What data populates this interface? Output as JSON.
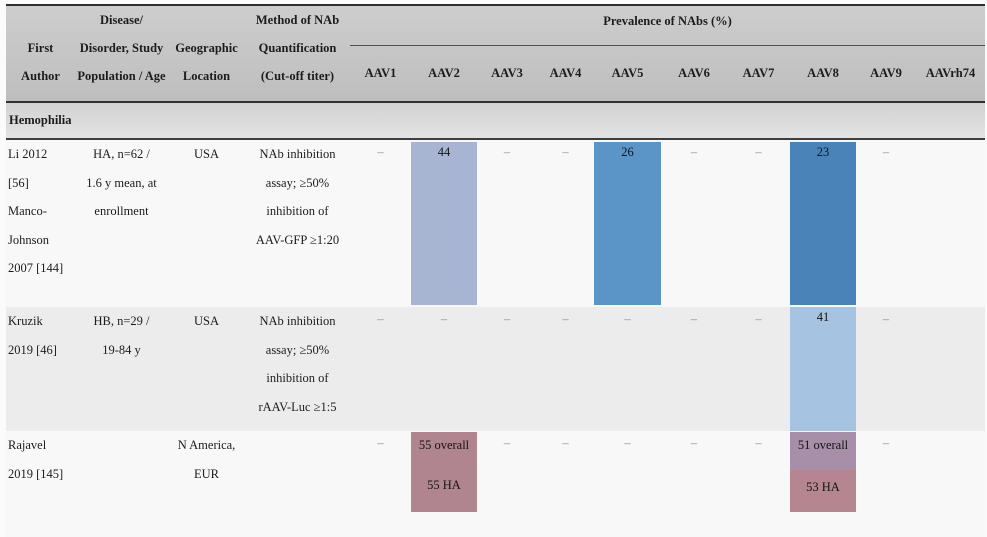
{
  "table": {
    "header": {
      "first_author": [
        "First",
        "Author"
      ],
      "disease": [
        "Disease/",
        "Disorder, Study",
        "Population / Age"
      ],
      "geographic": [
        "Geographic",
        "Location"
      ],
      "method": [
        "Method of NAb",
        "Quantification",
        "(Cut-off titer)"
      ],
      "prevalence_title": "Prevalence of NAbs (%)",
      "aav_columns": [
        "AAV1",
        "AAV2",
        "AAV3",
        "AAV4",
        "AAV5",
        "AAV6",
        "AAV7",
        "AAV8",
        "AAV9",
        "AAVrh74"
      ]
    },
    "section_label": "Hemophilia",
    "rows": [
      {
        "author": [
          "Li 2012",
          "[56]",
          "Manco-",
          "Johnson",
          "2007 [144]"
        ],
        "disease": [
          "HA, n=62 /",
          "1.6 y mean, at",
          "enrollment"
        ],
        "geographic": [
          "USA"
        ],
        "method": [
          "NAb inhibition",
          "assay; ≥50%",
          "inhibition of",
          "AAV-GFP ≥1:20"
        ],
        "aav": [
          "–",
          "44",
          "–",
          "–",
          "26",
          "–",
          "–",
          "23",
          "–",
          ""
        ]
      },
      {
        "author": [
          "Kruzik",
          "2019 [46]"
        ],
        "disease": [
          "HB, n=29 /",
          "19-84 y"
        ],
        "geographic": [
          "USA"
        ],
        "method": [
          "NAb inhibition",
          "assay; ≥50%",
          "inhibition of",
          "rAAV-Luc ≥1:5"
        ],
        "aav": [
          "–",
          "–",
          "–",
          "–",
          "–",
          "–",
          "–",
          "41",
          "–",
          ""
        ]
      },
      {
        "author": [
          "Rajavel",
          "2019 [145]"
        ],
        "disease": [],
        "geographic": [
          "N America,",
          "EUR"
        ],
        "method": [],
        "aav": [
          "–",
          "",
          "–",
          "–",
          "–",
          "–",
          "–",
          "",
          "–",
          ""
        ],
        "aav_multiline": {
          "aav2": [
            "55 overall",
            "55 HA"
          ],
          "aav8": [
            "51 overall",
            "53 HA"
          ]
        }
      }
    ]
  },
  "colors": {
    "hl_aav2_r1": "#a7b5d2",
    "hl_aav5_r1": "#5b94c7",
    "hl_aav8_r1": "#4a83b8",
    "hl_aav8_r2": "#a6c4e2",
    "hl_aav2_r3": "#b1858f",
    "hl_aav8_r3_top": "#a78fa9",
    "hl_aav8_r3_bottom": "#b5868f"
  }
}
